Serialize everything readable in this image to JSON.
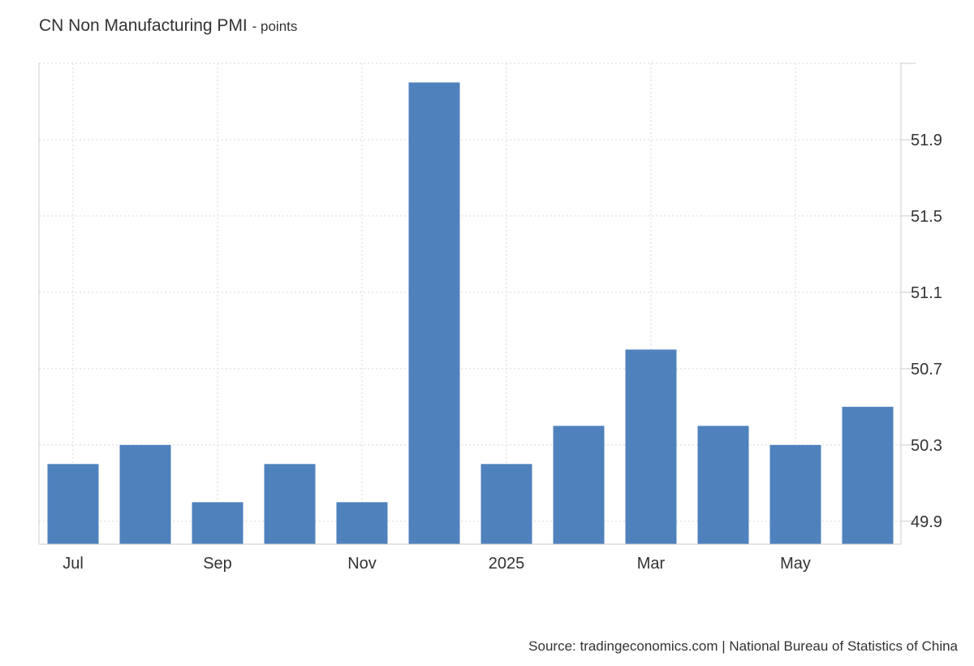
{
  "title": "CN Non Manufacturing PMI",
  "unit_label": "- points",
  "source": "Source: tradingeconomics.com | National Bureau of Statistics of China",
  "colors": {
    "bar": "#4f81bd",
    "grid": "#d9d9d9",
    "axis": "#cccccc",
    "text": "#333333"
  },
  "chart_data": {
    "type": "bar",
    "title": "CN Non Manufacturing PMI",
    "ylabel": "points",
    "xlabel": "",
    "grid": true,
    "y_axis_side": "right",
    "ylim": [
      49.78,
      52.3
    ],
    "categories": [
      "Jul 2024",
      "Aug 2024",
      "Sep 2024",
      "Oct 2024",
      "Nov 2024",
      "Dec 2024",
      "Jan 2025",
      "Feb 2025",
      "Mar 2025",
      "Apr 2025",
      "May 2025",
      "Jun 2025"
    ],
    "values": [
      50.2,
      50.3,
      50.0,
      50.2,
      50.0,
      52.2,
      50.2,
      50.4,
      50.8,
      50.4,
      50.3,
      50.5
    ],
    "x_tick_labels": [
      {
        "index": 0,
        "label": "Jul"
      },
      {
        "index": 2,
        "label": "Sep"
      },
      {
        "index": 4,
        "label": "Nov"
      },
      {
        "index": 6,
        "label": "2025"
      },
      {
        "index": 8,
        "label": "Mar"
      },
      {
        "index": 10,
        "label": "May"
      }
    ],
    "y_ticks": [
      49.9,
      50.3,
      50.7,
      51.1,
      51.5,
      51.9
    ]
  }
}
